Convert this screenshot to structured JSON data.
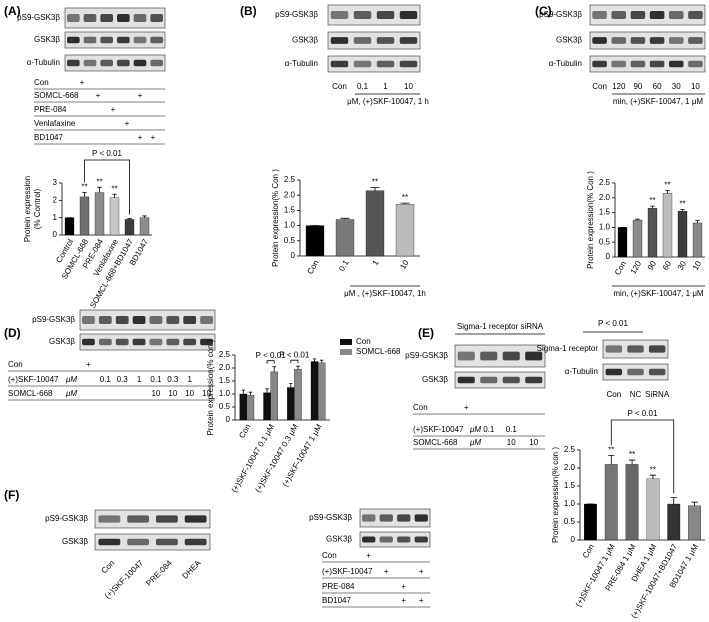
{
  "panels": {
    "A": {
      "label": "(A)",
      "blots": [
        "pS9-GSK3β",
        "GSK3β",
        "α-Tubulin"
      ],
      "treatments": [
        {
          "name": "Con",
          "marks": [
            "+",
            null,
            null,
            null,
            null,
            null
          ]
        },
        {
          "name": "SOMCL-668",
          "marks": [
            null,
            "+",
            null,
            null,
            "+",
            null
          ]
        },
        {
          "name": "PRE-084",
          "marks": [
            null,
            null,
            "+",
            null,
            null,
            null
          ]
        },
        {
          "name": "Venlafaxine",
          "marks": [
            null,
            null,
            null,
            "+",
            null,
            null
          ]
        },
        {
          "name": "BD1047",
          "marks": [
            null,
            null,
            null,
            null,
            "+",
            "+"
          ]
        }
      ]
    },
    "B": {
      "label": "(B)",
      "blots": [
        "pS9-GSK3β",
        "GSK3β",
        "α-Tubulin"
      ],
      "lanes": [
        "Con",
        "0.1",
        "1",
        "10"
      ],
      "caption": "μM, (+)SKF-10047, 1 h"
    },
    "C": {
      "label": "(C)",
      "blots": [
        "pS9-GSK3β",
        "GSK3β",
        "α-Tubulin"
      ],
      "lanes": [
        "Con",
        "120",
        "90",
        "60",
        "30",
        "10"
      ],
      "caption": "min, (+)SKF-10047, 1 μM"
    },
    "D": {
      "label": "(D)",
      "blots": [
        "pS9-GSK3β",
        "GSK3β"
      ],
      "treatments": [
        {
          "name": "Con",
          "marks": [
            "+",
            null,
            null,
            null,
            null,
            null,
            null,
            null
          ]
        },
        {
          "name": "(+)SKF-10047",
          "unit": "μM",
          "marks": [
            null,
            "0.1",
            "0.3",
            "1",
            "0.1",
            "0.3",
            "1",
            null
          ]
        },
        {
          "name": "SOMCL-668",
          "unit": "μM",
          "marks": [
            null,
            null,
            null,
            null,
            "10",
            "10",
            "10",
            "10"
          ]
        }
      ]
    },
    "E": {
      "label": "(E)",
      "header": "Sigma-1 receptor siRNA",
      "blots": [
        "pS9-GSK3β",
        "GSK3β"
      ],
      "treatments": [
        {
          "name": "Con",
          "marks": [
            "+",
            null,
            null,
            null
          ]
        },
        {
          "name": "(+)SKF-10047",
          "unit": "μM",
          "marks": [
            null,
            "0.1",
            "0.1",
            null
          ]
        },
        {
          "name": "SOMCL-668",
          "unit": "μM",
          "marks": [
            null,
            null,
            "10",
            "10"
          ]
        }
      ],
      "side_significance": "P < 0.01",
      "side_blots": [
        "Sigma-1 receptor",
        "α-Tubulin"
      ],
      "side_lanes": [
        "Con",
        "NC",
        "SiRNA"
      ]
    },
    "F": {
      "label": "(F)",
      "blots": [
        "pS9-GSK3β",
        "GSK3β"
      ],
      "lanes": [
        "Con",
        "(+)SKF-10047",
        "PRE-084",
        "DHEA"
      ],
      "mid_blots": [
        "pS9-GSK3β",
        "GSK3β"
      ],
      "treatments": [
        {
          "name": "Con",
          "marks": [
            "+",
            null,
            null,
            null
          ]
        },
        {
          "name": "(+)SKF-10047",
          "marks": [
            null,
            "+",
            null,
            "+"
          ]
        },
        {
          "name": "PRE-084",
          "marks": [
            null,
            null,
            "+",
            null
          ]
        },
        {
          "name": "BD1047",
          "marks": [
            null,
            null,
            "+",
            "+"
          ]
        }
      ]
    }
  },
  "chart_data": [
    {
      "type": "bar",
      "y_label": [
        "Protein expression",
        "(% Control)"
      ],
      "categories": [
        "Control",
        "SOMCL-668",
        "PRE-084",
        "Venlafaxine",
        "SOMCL-668+BD1047",
        "BD1047"
      ],
      "values": [
        1,
        2.2,
        2.45,
        2.15,
        0.9,
        1.0
      ],
      "errors": [
        0,
        0.25,
        0.3,
        0.2,
        0.05,
        0.1
      ],
      "colors": [
        "#000000",
        "#6e6e6e",
        "#8c8c8c",
        "#c8c8c8",
        "#3c3c3c",
        "#8c8c8c"
      ],
      "annotations": [
        null,
        "**",
        "**",
        "**",
        null,
        null
      ],
      "significance": "P < 0.01",
      "ylim": [
        0,
        3
      ],
      "yticks": [
        0,
        1,
        2,
        3
      ]
    },
    {
      "type": "bar",
      "y_label": "Protein expression(% Con )",
      "x_label": "μM , (+)SKF-10047, 1h",
      "categories": [
        "Con",
        "0.1",
        "1",
        "10"
      ],
      "values": [
        1,
        1.2,
        2.15,
        1.7
      ],
      "errors": [
        0,
        0.04,
        0.1,
        0.04
      ],
      "colors": [
        "#000000",
        "#7a7a7a",
        "#555555",
        "#bbbbbb"
      ],
      "annotations": [
        null,
        null,
        "**",
        "**"
      ],
      "ylim": [
        0,
        2.5
      ],
      "yticks": [
        0,
        0.5,
        {
          "value": 1,
          "label": "1.0"
        },
        1.5,
        {
          "value": 2,
          "label": "2.0"
        },
        2.5
      ]
    },
    {
      "type": "bar",
      "y_label": "Protein expression(% Con )",
      "x_label": "min, (+)SKF-10047, 1 μM",
      "categories": [
        "Con",
        "120",
        "90",
        "60",
        "30",
        "10"
      ],
      "values": [
        1,
        1.25,
        1.65,
        2.15,
        1.55,
        1.15
      ],
      "errors": [
        0,
        0.03,
        0.07,
        0.1,
        0.06,
        0.08
      ],
      "colors": [
        "#000000",
        "#8a8a8a",
        "#555555",
        "#bbbbbb",
        "#3c3c3c",
        "#8a8a8a"
      ],
      "annotations": [
        null,
        null,
        "**",
        "**",
        "**",
        null
      ],
      "ylim": [
        0,
        2.5
      ],
      "yticks": [
        0,
        0.5,
        {
          "value": 1,
          "label": "1.0"
        },
        1.5,
        {
          "value": 2,
          "label": "2.0"
        },
        2.5
      ]
    },
    {
      "type": "bar",
      "y_label": "Protein expression(% con )",
      "categories": [
        "Con",
        "(+)SKF-10047 0.1 μM",
        "(+)SKF-10047 0.3 μM",
        "(+)SKF-10047 1 μM"
      ],
      "series": [
        {
          "name": "Con",
          "color": "#111111",
          "values": [
            1.0,
            1.05,
            1.25,
            2.25
          ],
          "errors": [
            0.15,
            0.15,
            0.15,
            0.1
          ]
        },
        {
          "name": "SOMCL-668",
          "color": "#888888",
          "values": [
            0.95,
            1.85,
            1.95,
            2.2
          ],
          "errors": [
            0.12,
            0.2,
            0.12,
            0.1
          ]
        }
      ],
      "significance": [
        null,
        "P < 0.01",
        "P < 0.01",
        null
      ],
      "ylim": [
        0,
        2.5
      ],
      "yticks": [
        0,
        0.5,
        {
          "value": 1,
          "label": "1.0"
        },
        1.5,
        {
          "value": 2,
          "label": "2.0"
        },
        2.5
      ]
    },
    {
      "type": "bar",
      "y_label": "Protein expression(% con )",
      "categories": [
        "Con",
        "(+)SKF-10047 1  μM",
        "PRE-084 1  μM",
        "DHEA  1  μM",
        "(+)SKF-10047+BD1047",
        "BD1047 1  μM"
      ],
      "values": [
        1,
        2.1,
        2.1,
        1.7,
        1.0,
        0.95
      ],
      "errors": [
        0,
        0.25,
        0.12,
        0.1,
        0.18,
        0.1
      ],
      "colors": [
        "#000000",
        "#777777",
        "#666666",
        "#bbbbbb",
        "#333333",
        "#888888"
      ],
      "annotations": [
        null,
        "**",
        "**",
        "**",
        null,
        null
      ],
      "significance": "P < 0.01",
      "ylim": [
        0,
        2.5
      ],
      "yticks": [
        0,
        0.5,
        {
          "value": 1,
          "label": "1.0"
        },
        1.5,
        {
          "value": 2,
          "label": "2.0"
        },
        2.5
      ]
    }
  ]
}
